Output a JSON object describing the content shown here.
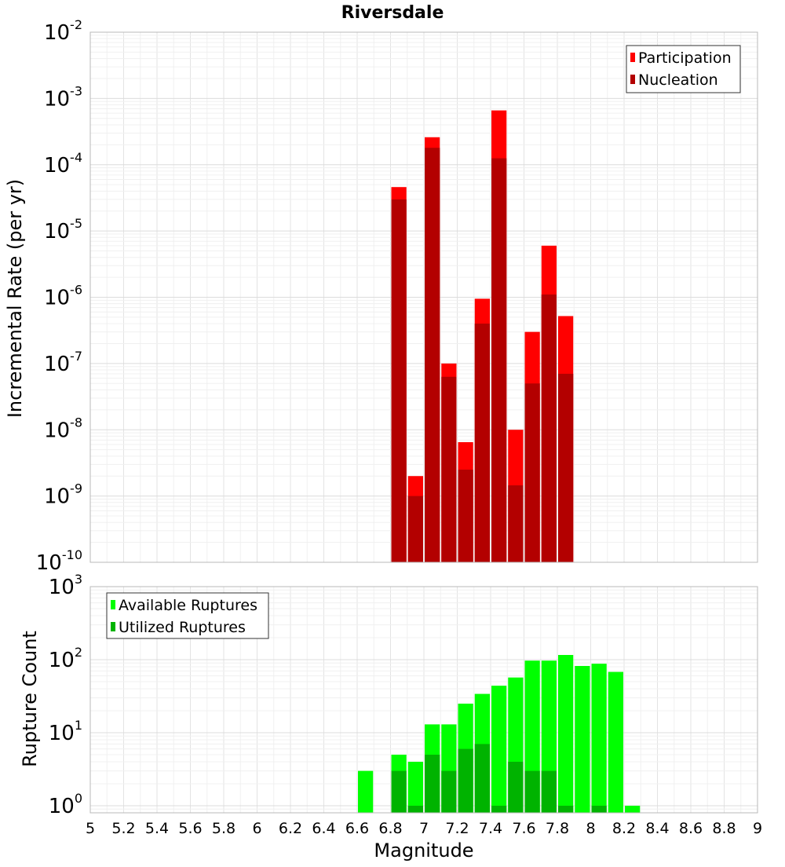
{
  "chart_data": [
    {
      "type": "bar",
      "title": "Riversdale",
      "xlabel": "",
      "ylabel": "Incremental Rate (per yr)",
      "yscale": "log",
      "ylim": [
        1e-10,
        0.01
      ],
      "xlim": [
        5,
        9
      ],
      "grid": true,
      "legend_position": "top-right",
      "bar_width": 0.1,
      "y_ticks": [
        {
          "base": "10",
          "exp": "-2",
          "value": 0.01
        },
        {
          "base": "10",
          "exp": "-3",
          "value": 0.001
        },
        {
          "base": "10",
          "exp": "-4",
          "value": 0.0001
        },
        {
          "base": "10",
          "exp": "-5",
          "value": 1e-05
        },
        {
          "base": "10",
          "exp": "-6",
          "value": 1e-06
        },
        {
          "base": "10",
          "exp": "-7",
          "value": 1e-07
        },
        {
          "base": "10",
          "exp": "-8",
          "value": 1e-08
        },
        {
          "base": "10",
          "exp": "-9",
          "value": 1e-09
        },
        {
          "base": "10",
          "exp": "-10",
          "value": 1e-10
        }
      ],
      "series": [
        {
          "name": "Participation",
          "color": "#ff0000",
          "x": [
            6.85,
            6.95,
            7.05,
            7.15,
            7.25,
            7.35,
            7.45,
            7.55,
            7.65,
            7.75,
            7.85
          ],
          "values": [
            4.6e-05,
            2e-09,
            0.00026,
            1e-07,
            6.5e-09,
            9.5e-07,
            0.00066,
            1e-08,
            3e-07,
            6e-06,
            5.2e-07
          ]
        },
        {
          "name": "Nucleation",
          "color": "#b30000",
          "x": [
            6.85,
            6.95,
            7.05,
            7.15,
            7.25,
            7.35,
            7.45,
            7.55,
            7.65,
            7.75,
            7.85
          ],
          "values": [
            3e-05,
            1e-09,
            0.00018,
            6.3e-08,
            2.5e-09,
            4e-07,
            0.000125,
            1.45e-09,
            5e-08,
            1.1e-06,
            7e-08
          ]
        }
      ]
    },
    {
      "type": "bar",
      "title": "",
      "xlabel": "Magnitude",
      "ylabel": "Rupture Count",
      "yscale": "log",
      "ylim": [
        0.8,
        1000
      ],
      "xlim": [
        5,
        9
      ],
      "grid": true,
      "legend_position": "top-left",
      "bar_width": 0.1,
      "x_ticks": [
        "5",
        "5.2",
        "5.4",
        "5.6",
        "5.8",
        "6",
        "6.2",
        "6.4",
        "6.6",
        "6.8",
        "7",
        "7.2",
        "7.4",
        "7.6",
        "7.8",
        "8",
        "8.2",
        "8.4",
        "8.6",
        "8.8",
        "9"
      ],
      "y_ticks": [
        {
          "base": "10",
          "exp": "3",
          "value": 1000
        },
        {
          "base": "10",
          "exp": "2",
          "value": 100
        },
        {
          "base": "10",
          "exp": "1",
          "value": 10
        },
        {
          "base": "10",
          "exp": "0",
          "value": 1
        }
      ],
      "series": [
        {
          "name": "Available Ruptures",
          "color": "#00ff00",
          "x": [
            6.65,
            6.85,
            6.95,
            7.05,
            7.15,
            7.25,
            7.35,
            7.45,
            7.55,
            7.65,
            7.75,
            7.85,
            7.95,
            8.05,
            8.15,
            8.25
          ],
          "values": [
            3,
            5,
            4,
            13,
            13,
            25,
            34,
            44,
            57,
            97,
            97,
            116,
            82,
            88,
            68,
            1
          ]
        },
        {
          "name": "Utilized Ruptures",
          "color": "#00b300",
          "x": [
            6.85,
            6.95,
            7.05,
            7.15,
            7.25,
            7.35,
            7.45,
            7.55,
            7.65,
            7.75,
            7.85,
            7.95,
            8.05
          ],
          "values": [
            3,
            1,
            5,
            3,
            6,
            7,
            1,
            4,
            3,
            3,
            1,
            0,
            1
          ]
        }
      ]
    }
  ]
}
